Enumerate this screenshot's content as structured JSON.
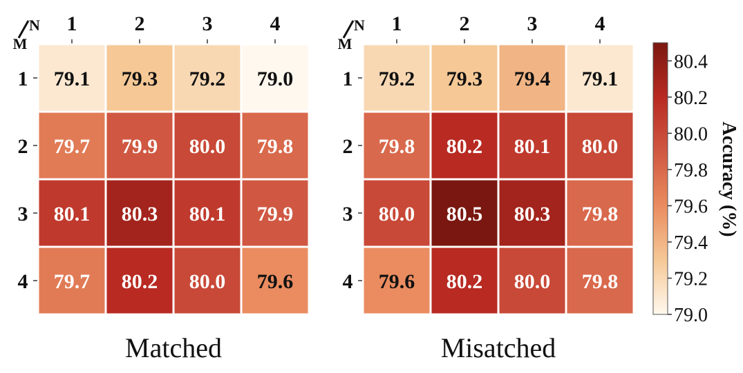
{
  "chart_data": [
    {
      "type": "heatmap",
      "title": "Matched",
      "corner_top": "N",
      "corner_left": "M",
      "columns": [
        "1",
        "2",
        "3",
        "4"
      ],
      "rows": [
        "1",
        "2",
        "3",
        "4"
      ],
      "values": [
        [
          79.1,
          79.3,
          79.2,
          79.0
        ],
        [
          79.7,
          79.9,
          80.0,
          79.8
        ],
        [
          80.1,
          80.3,
          80.1,
          79.9
        ],
        [
          79.7,
          80.2,
          80.0,
          79.6
        ]
      ]
    },
    {
      "type": "heatmap",
      "title": "Misatched",
      "corner_top": "N",
      "corner_left": "M",
      "columns": [
        "1",
        "2",
        "3",
        "4"
      ],
      "rows": [
        "1",
        "2",
        "3",
        "4"
      ],
      "values": [
        [
          79.2,
          79.3,
          79.4,
          79.1
        ],
        [
          79.8,
          80.2,
          80.1,
          80.0
        ],
        [
          80.0,
          80.5,
          80.3,
          79.8
        ],
        [
          79.6,
          80.2,
          80.0,
          79.8
        ]
      ]
    }
  ],
  "colorbar": {
    "label": "Accuracy (%)",
    "range": [
      79.0,
      80.5
    ],
    "ticks": [
      "80.4",
      "80.2",
      "80.0",
      "79.8",
      "79.6",
      "79.4",
      "79.2",
      "79.0"
    ],
    "colors": [
      "#fff8ee",
      "#f5c896",
      "#ea8c60",
      "#d05842",
      "#b82a22",
      "#7a1710"
    ]
  }
}
